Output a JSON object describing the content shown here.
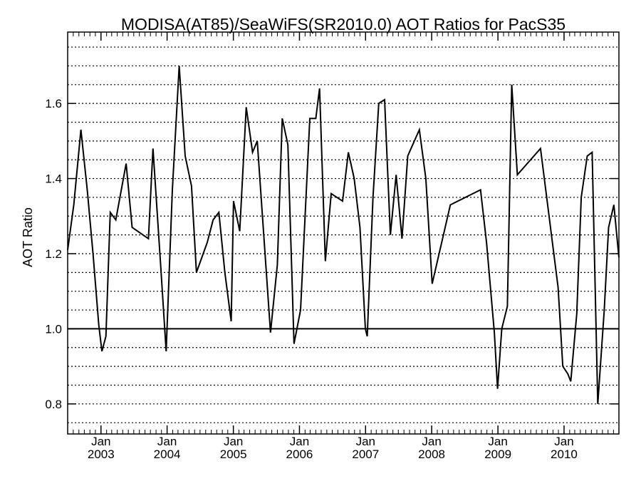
{
  "chart_data": {
    "type": "line",
    "title": "MODISA(AT85)/SeaWiFS(SR2010.0)  AOT Ratios for PacS35",
    "xlabel": "",
    "ylabel": "AOT Ratio",
    "xlim": [
      "2002-07-01",
      "2010-10-31"
    ],
    "ylim": [
      0.72,
      1.79
    ],
    "yticks": [
      0.8,
      1.0,
      1.2,
      1.4,
      1.6
    ],
    "ytick_labels": [
      "0.8",
      "1.0",
      "1.2",
      "1.4",
      "1.6"
    ],
    "xticks": [
      {
        "date": "2003-01-01",
        "month": "Jan",
        "year": "2003"
      },
      {
        "date": "2004-01-01",
        "month": "Jan",
        "year": "2004"
      },
      {
        "date": "2005-01-01",
        "month": "Jan",
        "year": "2005"
      },
      {
        "date": "2006-01-01",
        "month": "Jan",
        "year": "2006"
      },
      {
        "date": "2007-01-01",
        "month": "Jan",
        "year": "2007"
      },
      {
        "date": "2008-01-01",
        "month": "Jan",
        "year": "2008"
      },
      {
        "date": "2009-01-01",
        "month": "Jan",
        "year": "2009"
      },
      {
        "date": "2010-01-01",
        "month": "Jan",
        "year": "2010"
      }
    ],
    "minor_xticks_per_year": 12,
    "horizontal_gridlines": "dotted, every 0.05",
    "reference_line": 1.0,
    "grid": true,
    "series": [
      {
        "color": "#000000",
        "points": [
          [
            "2002-07-01",
            1.21
          ],
          [
            "2002-08-04",
            1.33
          ],
          [
            "2002-09-12",
            1.53
          ],
          [
            "2002-10-17",
            1.37
          ],
          [
            "2002-11-18",
            1.2
          ],
          [
            "2002-12-20",
            1.01
          ],
          [
            "2003-01-06",
            0.94
          ],
          [
            "2003-01-28",
            0.98
          ],
          [
            "2003-02-21",
            1.31
          ],
          [
            "2003-03-24",
            1.29
          ],
          [
            "2003-05-20",
            1.44
          ],
          [
            "2003-06-22",
            1.27
          ],
          [
            "2003-09-20",
            1.24
          ],
          [
            "2003-10-15",
            1.48
          ],
          [
            "2003-11-25",
            1.18
          ],
          [
            "2003-12-27",
            0.94
          ],
          [
            "2004-01-30",
            1.37
          ],
          [
            "2004-03-08",
            1.7
          ],
          [
            "2004-04-10",
            1.46
          ],
          [
            "2004-05-15",
            1.38
          ],
          [
            "2004-06-11",
            1.15
          ],
          [
            "2004-08-10",
            1.23
          ],
          [
            "2004-09-11",
            1.29
          ],
          [
            "2004-10-13",
            1.31
          ],
          [
            "2004-11-15",
            1.15
          ],
          [
            "2004-12-20",
            1.02
          ],
          [
            "2005-01-02",
            1.34
          ],
          [
            "2005-02-05",
            1.26
          ],
          [
            "2005-03-13",
            1.59
          ],
          [
            "2005-04-17",
            1.47
          ],
          [
            "2005-05-13",
            1.5
          ],
          [
            "2005-07-25",
            0.99
          ],
          [
            "2005-09-01",
            1.17
          ],
          [
            "2005-09-28",
            1.56
          ],
          [
            "2005-10-29",
            1.49
          ],
          [
            "2005-12-02",
            0.96
          ],
          [
            "2006-01-07",
            1.05
          ],
          [
            "2006-02-27",
            1.56
          ],
          [
            "2006-04-01",
            1.56
          ],
          [
            "2006-04-22",
            1.64
          ],
          [
            "2006-05-24",
            1.18
          ],
          [
            "2006-06-25",
            1.36
          ],
          [
            "2006-08-27",
            1.34
          ],
          [
            "2006-09-28",
            1.47
          ],
          [
            "2006-10-30",
            1.4
          ],
          [
            "2006-12-01",
            1.27
          ],
          [
            "2006-12-31",
            1.0
          ],
          [
            "2007-01-10",
            0.98
          ],
          [
            "2007-02-11",
            1.35
          ],
          [
            "2007-03-15",
            1.6
          ],
          [
            "2007-04-16",
            1.61
          ],
          [
            "2007-05-18",
            1.25
          ],
          [
            "2007-06-19",
            1.41
          ],
          [
            "2007-07-21",
            1.24
          ],
          [
            "2007-08-22",
            1.46
          ],
          [
            "2007-10-25",
            1.53
          ],
          [
            "2007-11-30",
            1.4
          ],
          [
            "2008-01-04",
            1.12
          ],
          [
            "2008-04-13",
            1.33
          ],
          [
            "2008-09-27",
            1.37
          ],
          [
            "2008-10-30",
            1.23
          ],
          [
            "2008-12-12",
            0.99
          ],
          [
            "2008-12-30",
            0.84
          ],
          [
            "2009-01-22",
            1.0
          ],
          [
            "2009-02-22",
            1.06
          ],
          [
            "2009-03-18",
            1.65
          ],
          [
            "2009-04-18",
            1.41
          ],
          [
            "2009-08-24",
            1.48
          ],
          [
            "2009-11-29",
            1.11
          ],
          [
            "2009-12-25",
            0.9
          ],
          [
            "2010-01-22",
            0.88
          ],
          [
            "2010-02-07",
            0.86
          ],
          [
            "2010-03-12",
            1.04
          ],
          [
            "2010-04-06",
            1.35
          ],
          [
            "2010-05-09",
            1.46
          ],
          [
            "2010-06-05",
            1.47
          ],
          [
            "2010-07-06",
            0.8
          ],
          [
            "2010-08-11",
            1.05
          ],
          [
            "2010-09-04",
            1.27
          ],
          [
            "2010-10-03",
            1.33
          ],
          [
            "2010-10-31",
            1.19
          ]
        ]
      }
    ]
  }
}
